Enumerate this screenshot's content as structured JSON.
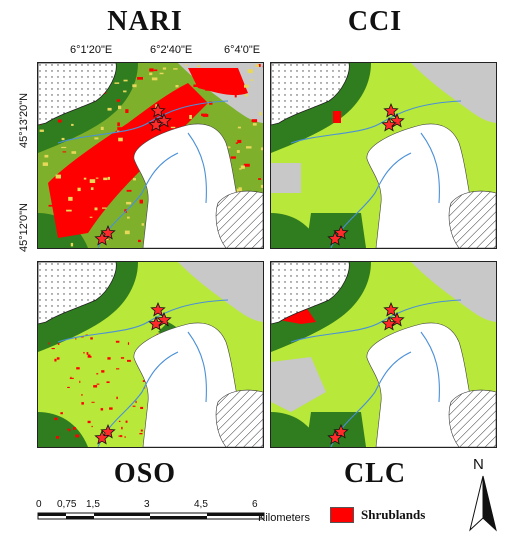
{
  "titles": {
    "top_left": "NARI",
    "top_right": "CCI",
    "bottom_left": "OSO",
    "bottom_right": "CLC"
  },
  "coordinates": {
    "longitude": [
      "6°1'20\"E",
      "6°2'40\"E",
      "6°4'0\"E"
    ],
    "latitude": [
      "45°13'20\"N",
      "45°12'0\"N"
    ]
  },
  "scale_bar": {
    "ticks": [
      "0",
      "0,75",
      "1,5",
      "3",
      "4,5",
      "6"
    ],
    "unit": "Kilometers"
  },
  "legend": {
    "label": "Shrublands",
    "color": "#ff0000"
  },
  "north_arrow": {
    "label": "N"
  },
  "colors": {
    "shrubland": "#ff0000",
    "light_green": "#b8e83a",
    "dark_green": "#2f7d1e",
    "gray": "#c8c8c8",
    "water": "#4a90d9",
    "star": "#ff2a2a"
  }
}
